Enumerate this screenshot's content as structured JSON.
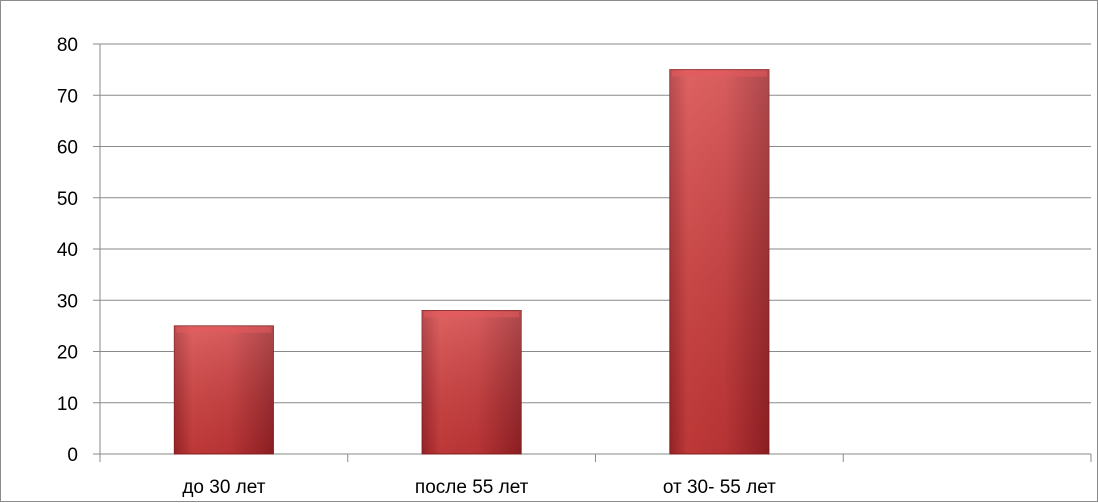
{
  "chart_data": {
    "type": "bar",
    "title": "",
    "xlabel": "",
    "ylabel": "",
    "categories": [
      "до 30 лет",
      "после 55 лет",
      "от 30- 55 лет",
      ""
    ],
    "values": [
      25,
      28,
      75,
      null
    ],
    "ylim": [
      0,
      80
    ],
    "yticks": [
      "0",
      "10",
      "20",
      "30",
      "40",
      "50",
      "60",
      "70",
      "80"
    ],
    "grid": true,
    "legend": "none",
    "colors": {
      "bar_fill": "#c4343a",
      "bar_highlight": "#e04a4e",
      "bar_shadow": "#9c2226",
      "gridline": "#8a8a8a"
    }
  }
}
